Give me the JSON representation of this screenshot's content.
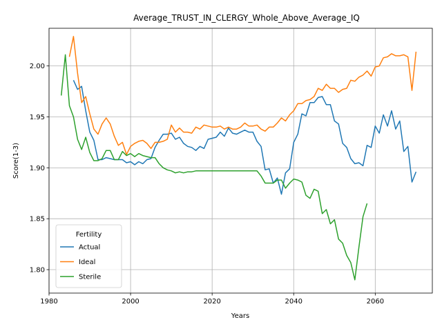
{
  "chart_data": {
    "type": "line",
    "title": "Average_TRUST_IN_CLERGY_Whole_Above_Average_IQ",
    "xlabel": "Years",
    "ylabel": "Score(1-3)",
    "xlim": [
      1980,
      2074
    ],
    "ylim": [
      1.777,
      2.037
    ],
    "xticks": [
      1980,
      2000,
      2020,
      2040,
      2060
    ],
    "yticks": [
      1.8,
      1.85,
      1.9,
      1.95,
      2.0
    ],
    "xtick_labels": [
      "1980",
      "2000",
      "2020",
      "2040",
      "2060"
    ],
    "ytick_labels": [
      "1.80",
      "1.85",
      "1.90",
      "1.95",
      "2.00"
    ],
    "grid": true,
    "legend": {
      "title": "Fertility",
      "position": "lower-left"
    },
    "series": [
      {
        "name": "Actual",
        "color": "#1f77b4",
        "x": [
          1986,
          1987,
          1988,
          1989,
          1990,
          1991,
          1992,
          1993,
          1994,
          1995,
          1996,
          1997,
          1998,
          1999,
          2000,
          2001,
          2002,
          2003,
          2004,
          2005,
          2006,
          2007,
          2008,
          2009,
          2010,
          2011,
          2012,
          2013,
          2014,
          2015,
          2016,
          2017,
          2018,
          2019,
          2020,
          2021,
          2022,
          2023,
          2024,
          2025,
          2026,
          2027,
          2028,
          2029,
          2030,
          2031,
          2032,
          2033,
          2034,
          2035,
          2036,
          2037,
          2038,
          2039,
          2040,
          2041,
          2042,
          2043,
          2044,
          2045,
          2046,
          2047,
          2048,
          2049,
          2050,
          2051,
          2052,
          2053,
          2054,
          2055,
          2056,
          2057,
          2058,
          2059,
          2060,
          2061,
          2062,
          2063,
          2064,
          2065,
          2066,
          2067,
          2068,
          2069,
          2070
        ],
        "y": [
          1.986,
          1.977,
          1.98,
          1.956,
          1.935,
          1.927,
          1.908,
          1.908,
          1.91,
          1.909,
          1.908,
          1.908,
          1.908,
          1.905,
          1.906,
          1.903,
          1.906,
          1.904,
          1.908,
          1.909,
          1.92,
          1.927,
          1.933,
          1.933,
          1.934,
          1.928,
          1.93,
          1.924,
          1.921,
          1.92,
          1.917,
          1.921,
          1.919,
          1.928,
          1.929,
          1.93,
          1.935,
          1.931,
          1.939,
          1.934,
          1.933,
          1.935,
          1.937,
          1.935,
          1.935,
          1.926,
          1.921,
          1.898,
          1.899,
          1.885,
          1.89,
          1.874,
          1.895,
          1.899,
          1.925,
          1.933,
          1.953,
          1.951,
          1.964,
          1.964,
          1.969,
          1.97,
          1.962,
          1.962,
          1.946,
          1.943,
          1.924,
          1.92,
          1.909,
          1.904,
          1.905,
          1.902,
          1.922,
          1.92,
          1.941,
          1.934,
          1.952,
          1.941,
          1.956,
          1.938,
          1.946,
          1.916,
          1.921,
          1.886,
          1.896
        ]
      },
      {
        "name": "Ideal",
        "color": "#ff7f0e",
        "x": [
          1985,
          1986,
          1987,
          1988,
          1989,
          1990,
          1991,
          1992,
          1993,
          1994,
          1995,
          1996,
          1997,
          1998,
          1999,
          2000,
          2001,
          2002,
          2003,
          2004,
          2005,
          2006,
          2007,
          2008,
          2009,
          2010,
          2011,
          2012,
          2013,
          2014,
          2015,
          2016,
          2017,
          2018,
          2019,
          2020,
          2021,
          2022,
          2023,
          2024,
          2025,
          2026,
          2027,
          2028,
          2029,
          2030,
          2031,
          2032,
          2033,
          2034,
          2035,
          2036,
          2037,
          2038,
          2039,
          2040,
          2041,
          2042,
          2043,
          2044,
          2045,
          2046,
          2047,
          2048,
          2049,
          2050,
          2051,
          2052,
          2053,
          2054,
          2055,
          2056,
          2057,
          2058,
          2059,
          2060,
          2061,
          2062,
          2063,
          2064,
          2065,
          2066,
          2067,
          2068,
          2069,
          2070
        ],
        "y": [
          2.009,
          2.029,
          1.993,
          1.964,
          1.97,
          1.953,
          1.938,
          1.933,
          1.943,
          1.949,
          1.943,
          1.931,
          1.922,
          1.925,
          1.913,
          1.921,
          1.924,
          1.926,
          1.927,
          1.924,
          1.919,
          1.925,
          1.925,
          1.926,
          1.928,
          1.942,
          1.935,
          1.939,
          1.935,
          1.935,
          1.934,
          1.94,
          1.938,
          1.942,
          1.941,
          1.94,
          1.94,
          1.941,
          1.938,
          1.94,
          1.938,
          1.938,
          1.94,
          1.944,
          1.941,
          1.941,
          1.942,
          1.938,
          1.936,
          1.94,
          1.94,
          1.944,
          1.949,
          1.946,
          1.952,
          1.956,
          1.963,
          1.963,
          1.966,
          1.967,
          1.97,
          1.978,
          1.976,
          1.982,
          1.978,
          1.978,
          1.974,
          1.977,
          1.978,
          1.986,
          1.985,
          1.989,
          1.991,
          1.995,
          1.99,
          1.999,
          2.0,
          2.008,
          2.009,
          2.012,
          2.01,
          2.01,
          2.011,
          2.009,
          1.976,
          2.014
        ]
      },
      {
        "name": "Sterile",
        "color": "#2ca02c",
        "x": [
          1983,
          1984,
          1985,
          1986,
          1987,
          1988,
          1989,
          1990,
          1991,
          1992,
          1993,
          1994,
          1995,
          1996,
          1997,
          1998,
          1999,
          2000,
          2001,
          2002,
          2003,
          2004,
          2005,
          2006,
          2007,
          2008,
          2009,
          2010,
          2011,
          2012,
          2013,
          2014,
          2015,
          2016,
          2017,
          2018,
          2019,
          2020,
          2021,
          2022,
          2023,
          2024,
          2025,
          2026,
          2027,
          2028,
          2029,
          2030,
          2031,
          2032,
          2033,
          2034,
          2035,
          2036,
          2037,
          2038,
          2039,
          2040,
          2041,
          2042,
          2043,
          2044,
          2045,
          2046,
          2047,
          2048,
          2049,
          2050,
          2051,
          2052,
          2053,
          2054,
          2055,
          2056,
          2057,
          2058
        ],
        "y": [
          1.971,
          2.011,
          1.961,
          1.95,
          1.928,
          1.918,
          1.93,
          1.915,
          1.907,
          1.907,
          1.909,
          1.917,
          1.917,
          1.908,
          1.908,
          1.916,
          1.912,
          1.914,
          1.911,
          1.914,
          1.912,
          1.911,
          1.91,
          1.91,
          1.904,
          1.9,
          1.898,
          1.897,
          1.895,
          1.896,
          1.895,
          1.896,
          1.896,
          1.897,
          1.897,
          1.897,
          1.897,
          1.897,
          1.897,
          1.897,
          1.897,
          1.897,
          1.897,
          1.897,
          1.897,
          1.897,
          1.897,
          1.897,
          1.897,
          1.892,
          1.885,
          1.885,
          1.885,
          1.888,
          1.888,
          1.88,
          1.885,
          1.889,
          1.888,
          1.886,
          1.873,
          1.87,
          1.879,
          1.877,
          1.855,
          1.859,
          1.845,
          1.849,
          1.83,
          1.826,
          1.814,
          1.807,
          1.79,
          1.822,
          1.852,
          1.865
        ]
      }
    ]
  }
}
